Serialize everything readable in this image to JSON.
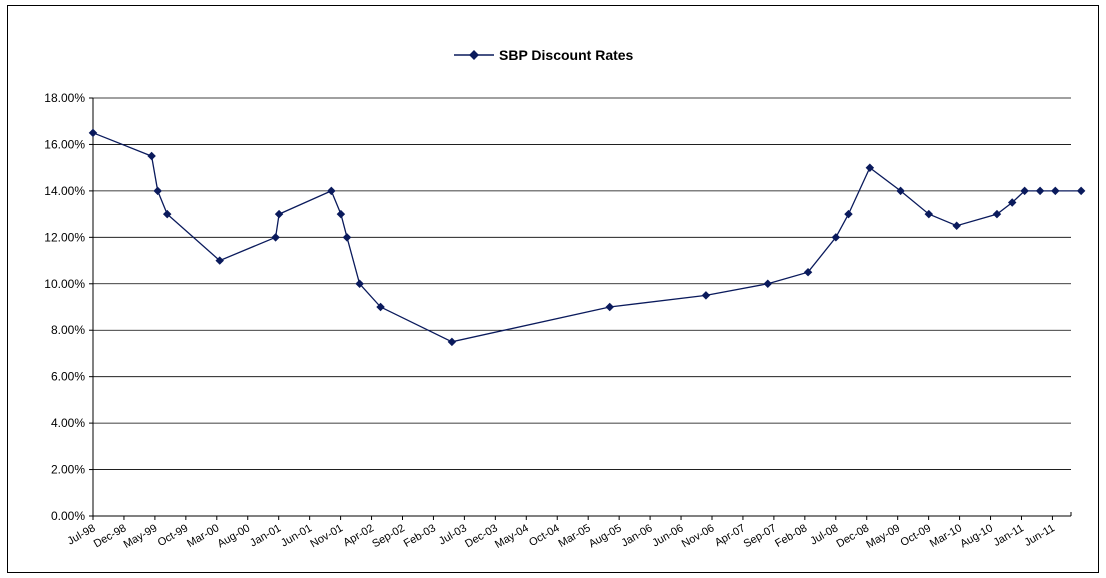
{
  "chart_data": {
    "type": "line",
    "title": "",
    "xlabel": "",
    "ylabel": "",
    "legend_position": "top",
    "grid": true,
    "ylim": [
      0,
      0.18
    ],
    "y_ticks": [
      "0.00%",
      "2.00%",
      "4.00%",
      "6.00%",
      "8.00%",
      "10.00%",
      "12.00%",
      "14.00%",
      "16.00%",
      "18.00%"
    ],
    "x_ticks": [
      "Jul-98",
      "Dec-98",
      "May-99",
      "Oct-99",
      "Mar-00",
      "Aug-00",
      "Jan-01",
      "Jun-01",
      "Nov-01",
      "Apr-02",
      "Sep-02",
      "Feb-03",
      "Jul-03",
      "Dec-03",
      "May-04",
      "Oct-04",
      "Mar-05",
      "Aug-05",
      "Jan-06",
      "Jun-06",
      "Nov-06",
      "Apr-07",
      "Sep-07",
      "Feb-08",
      "Jul-08",
      "Dec-08",
      "May-09",
      "Oct-09",
      "Mar-10",
      "Aug-10",
      "Jan-11",
      "Jun-11"
    ],
    "colors": {
      "series": "#0a1a5c",
      "grid": "#000000"
    },
    "series": [
      {
        "name": "SBP Discount Rates",
        "points": [
          {
            "x": "1998-07-01",
            "y": 0.165
          },
          {
            "x": "1999-04-15",
            "y": 0.155
          },
          {
            "x": "1999-05-15",
            "y": 0.14
          },
          {
            "x": "1999-07-01",
            "y": 0.13
          },
          {
            "x": "2000-03-15",
            "y": 0.11
          },
          {
            "x": "2000-12-15",
            "y": 0.12
          },
          {
            "x": "2001-01-01",
            "y": 0.13
          },
          {
            "x": "2001-09-15",
            "y": 0.14
          },
          {
            "x": "2001-11-01",
            "y": 0.13
          },
          {
            "x": "2001-12-01",
            "y": 0.12
          },
          {
            "x": "2002-02-01",
            "y": 0.1
          },
          {
            "x": "2002-05-15",
            "y": 0.09
          },
          {
            "x": "2003-05-01",
            "y": 0.075
          },
          {
            "x": "2005-06-15",
            "y": 0.09
          },
          {
            "x": "2006-10-01",
            "y": 0.095
          },
          {
            "x": "2007-08-01",
            "y": 0.1
          },
          {
            "x": "2008-02-15",
            "y": 0.105
          },
          {
            "x": "2008-07-01",
            "y": 0.12
          },
          {
            "x": "2008-09-01",
            "y": 0.13
          },
          {
            "x": "2008-12-15",
            "y": 0.15
          },
          {
            "x": "2009-05-15",
            "y": 0.14
          },
          {
            "x": "2009-10-01",
            "y": 0.13
          },
          {
            "x": "2010-02-15",
            "y": 0.125
          },
          {
            "x": "2010-09-01",
            "y": 0.13
          },
          {
            "x": "2010-11-15",
            "y": 0.135
          },
          {
            "x": "2011-01-15",
            "y": 0.14
          },
          {
            "x": "2011-04-01",
            "y": 0.14
          },
          {
            "x": "2011-06-15",
            "y": 0.14
          },
          {
            "x": "2011-10-20",
            "y": 0.14
          }
        ]
      }
    ]
  }
}
